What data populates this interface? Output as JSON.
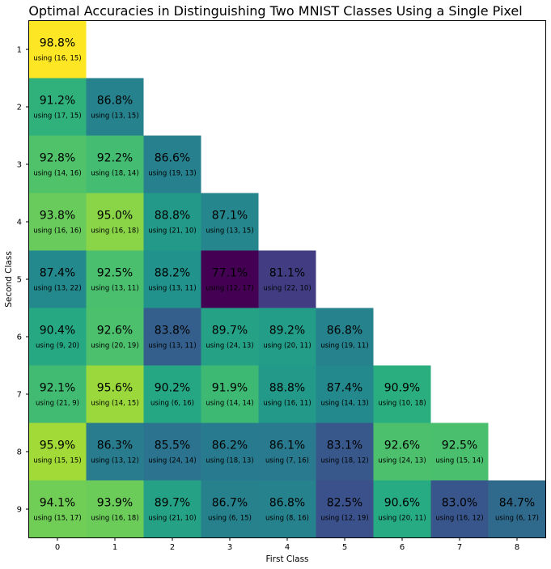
{
  "chart_data": {
    "type": "heatmap",
    "title": "Optimal Accuracies in Distinguishing Two MNIST Classes Using a Single Pixel",
    "xlabel": "First Class",
    "ylabel": "Second Class",
    "x_ticks": [
      "0",
      "1",
      "2",
      "3",
      "4",
      "5",
      "6",
      "7",
      "8"
    ],
    "y_ticks": [
      "1",
      "2",
      "3",
      "4",
      "5",
      "6",
      "7",
      "8",
      "9"
    ],
    "colormap": "viridis",
    "color_range": [
      77.1,
      98.8
    ],
    "rows": [
      {
        "second_class": "1",
        "cells": [
          {
            "first_class": "0",
            "value": 98.8,
            "label": "98.8%",
            "pixel": "using (16, 15)"
          }
        ]
      },
      {
        "second_class": "2",
        "cells": [
          {
            "first_class": "0",
            "value": 91.2,
            "label": "91.2%",
            "pixel": "using (17, 15)"
          },
          {
            "first_class": "1",
            "value": 86.8,
            "label": "86.8%",
            "pixel": "using (13, 15)"
          }
        ]
      },
      {
        "second_class": "3",
        "cells": [
          {
            "first_class": "0",
            "value": 92.8,
            "label": "92.8%",
            "pixel": "using (14, 16)"
          },
          {
            "first_class": "1",
            "value": 92.2,
            "label": "92.2%",
            "pixel": "using (18, 14)"
          },
          {
            "first_class": "2",
            "value": 86.6,
            "label": "86.6%",
            "pixel": "using (19, 13)"
          }
        ]
      },
      {
        "second_class": "4",
        "cells": [
          {
            "first_class": "0",
            "value": 93.8,
            "label": "93.8%",
            "pixel": "using (16, 16)"
          },
          {
            "first_class": "1",
            "value": 95.0,
            "label": "95.0%",
            "pixel": "using (16, 18)"
          },
          {
            "first_class": "2",
            "value": 88.8,
            "label": "88.8%",
            "pixel": "using (21, 10)"
          },
          {
            "first_class": "3",
            "value": 87.1,
            "label": "87.1%",
            "pixel": "using (13, 15)"
          }
        ]
      },
      {
        "second_class": "5",
        "cells": [
          {
            "first_class": "0",
            "value": 87.4,
            "label": "87.4%",
            "pixel": "using (13, 22)"
          },
          {
            "first_class": "1",
            "value": 92.5,
            "label": "92.5%",
            "pixel": "using (13, 11)"
          },
          {
            "first_class": "2",
            "value": 88.2,
            "label": "88.2%",
            "pixel": "using (13, 11)"
          },
          {
            "first_class": "3",
            "value": 77.1,
            "label": "77.1%",
            "pixel": "using (12, 17)"
          },
          {
            "first_class": "4",
            "value": 81.1,
            "label": "81.1%",
            "pixel": "using (22, 10)"
          }
        ]
      },
      {
        "second_class": "6",
        "cells": [
          {
            "first_class": "0",
            "value": 90.4,
            "label": "90.4%",
            "pixel": "using (9, 20)"
          },
          {
            "first_class": "1",
            "value": 92.6,
            "label": "92.6%",
            "pixel": "using (20, 19)"
          },
          {
            "first_class": "2",
            "value": 83.8,
            "label": "83.8%",
            "pixel": "using (13, 11)"
          },
          {
            "first_class": "3",
            "value": 89.7,
            "label": "89.7%",
            "pixel": "using (24, 13)"
          },
          {
            "first_class": "4",
            "value": 89.2,
            "label": "89.2%",
            "pixel": "using (20, 11)"
          },
          {
            "first_class": "5",
            "value": 86.8,
            "label": "86.8%",
            "pixel": "using (19, 11)"
          }
        ]
      },
      {
        "second_class": "7",
        "cells": [
          {
            "first_class": "0",
            "value": 92.1,
            "label": "92.1%",
            "pixel": "using (21, 9)"
          },
          {
            "first_class": "1",
            "value": 95.6,
            "label": "95.6%",
            "pixel": "using (14, 15)"
          },
          {
            "first_class": "2",
            "value": 90.2,
            "label": "90.2%",
            "pixel": "using (6, 16)"
          },
          {
            "first_class": "3",
            "value": 91.9,
            "label": "91.9%",
            "pixel": "using (14, 14)"
          },
          {
            "first_class": "4",
            "value": 88.8,
            "label": "88.8%",
            "pixel": "using (16, 11)"
          },
          {
            "first_class": "5",
            "value": 87.4,
            "label": "87.4%",
            "pixel": "using (14, 13)"
          },
          {
            "first_class": "6",
            "value": 90.9,
            "label": "90.9%",
            "pixel": "using (10, 18)"
          }
        ]
      },
      {
        "second_class": "8",
        "cells": [
          {
            "first_class": "0",
            "value": 95.9,
            "label": "95.9%",
            "pixel": "using (15, 15)"
          },
          {
            "first_class": "1",
            "value": 86.3,
            "label": "86.3%",
            "pixel": "using (13, 12)"
          },
          {
            "first_class": "2",
            "value": 85.5,
            "label": "85.5%",
            "pixel": "using (24, 14)"
          },
          {
            "first_class": "3",
            "value": 86.2,
            "label": "86.2%",
            "pixel": "using (18, 13)"
          },
          {
            "first_class": "4",
            "value": 86.1,
            "label": "86.1%",
            "pixel": "using (7, 16)"
          },
          {
            "first_class": "5",
            "value": 83.1,
            "label": "83.1%",
            "pixel": "using (18, 12)"
          },
          {
            "first_class": "6",
            "value": 92.6,
            "label": "92.6%",
            "pixel": "using (24, 13)"
          },
          {
            "first_class": "7",
            "value": 92.5,
            "label": "92.5%",
            "pixel": "using (15, 14)"
          }
        ]
      },
      {
        "second_class": "9",
        "cells": [
          {
            "first_class": "0",
            "value": 94.1,
            "label": "94.1%",
            "pixel": "using (15, 17)"
          },
          {
            "first_class": "1",
            "value": 93.9,
            "label": "93.9%",
            "pixel": "using (16, 18)"
          },
          {
            "first_class": "2",
            "value": 89.7,
            "label": "89.7%",
            "pixel": "using (21, 10)"
          },
          {
            "first_class": "3",
            "value": 86.7,
            "label": "86.7%",
            "pixel": "using (6, 15)"
          },
          {
            "first_class": "4",
            "value": 86.8,
            "label": "86.8%",
            "pixel": "using (8, 16)"
          },
          {
            "first_class": "5",
            "value": 82.5,
            "label": "82.5%",
            "pixel": "using (12, 19)"
          },
          {
            "first_class": "6",
            "value": 90.6,
            "label": "90.6%",
            "pixel": "using (20, 11)"
          },
          {
            "first_class": "7",
            "value": 83.0,
            "label": "83.0%",
            "pixel": "using (16, 12)"
          },
          {
            "first_class": "8",
            "value": 84.7,
            "label": "84.7%",
            "pixel": "using (6, 17)"
          }
        ]
      }
    ]
  }
}
